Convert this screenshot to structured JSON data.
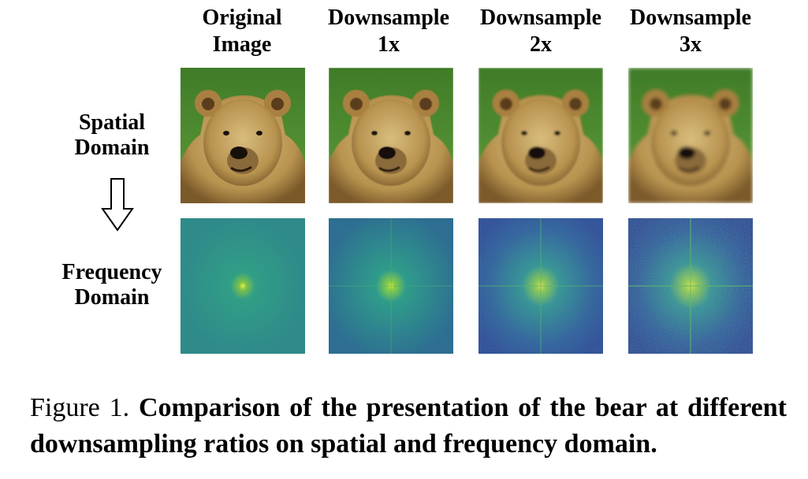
{
  "columns": [
    {
      "line1": "Original",
      "line2": "Image"
    },
    {
      "line1": "Downsample",
      "line2": "1x"
    },
    {
      "line1": "Downsample",
      "line2": "2x"
    },
    {
      "line1": "Downsample",
      "line2": "3x"
    }
  ],
  "rows": [
    {
      "line1": "Spatial",
      "line2": "Domain"
    },
    {
      "line1": "Frequency",
      "line2": "Domain"
    }
  ],
  "caption": {
    "label": "Figure 1.",
    "text": "Comparison of the presentation of the bear at different downsampling ratios on spatial and frequency domain."
  },
  "colors": {
    "grass": "#4e8a2f",
    "fur": "#c8a666",
    "spectrum_low": "#2c7f8a",
    "spectrum_noise": "#2a4f93",
    "spectrum_peak": "#c8d930"
  }
}
